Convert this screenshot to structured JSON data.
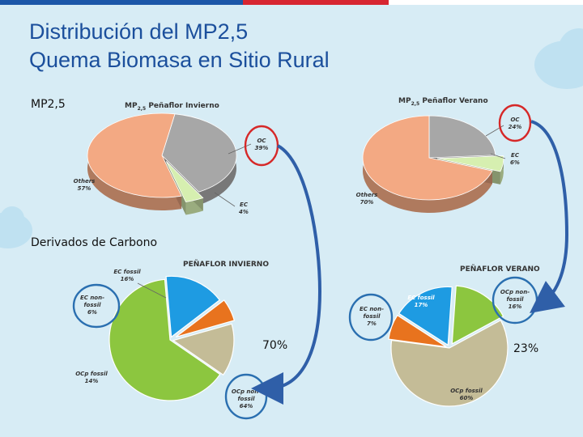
{
  "title": {
    "line1": "Distribución del MP2,5",
    "line2": "Quema Biomasa en Sitio Rural"
  },
  "section_labels": {
    "mp25": "MP2,5",
    "carbon": "Derivados de Carbono"
  },
  "colors": {
    "title": "#1b4f9c",
    "oc": "#a7a7a7",
    "ec": "#d6efb0",
    "others": "#f3a983",
    "ec_fossil": "#1e9be2",
    "ec_nonfossil": "#e8731e",
    "ocp_fossil": "#c4bc97",
    "ocp_nonfossil": "#8cc63f",
    "circle": "#d62828",
    "blue_circle": "#2a6fb0",
    "arrow": "#2f5fa8"
  },
  "chart_data": [
    {
      "type": "pie",
      "title": "MP2,5 Peñaflor Invierno",
      "title_main": "MP",
      "title_sub": "2,5",
      "title_rest": " Peñaflor  Invierno",
      "slices": [
        {
          "name": "OC",
          "value": 39,
          "label": "39%"
        },
        {
          "name": "EC",
          "value": 4,
          "label": "4%"
        },
        {
          "name": "Others",
          "value": 57,
          "label": "57%"
        }
      ]
    },
    {
      "type": "pie",
      "title": "MP2,5 Peñaflor Verano",
      "title_main": "MP",
      "title_sub": "2,5",
      "title_rest": " Peñaflor  Verano",
      "slices": [
        {
          "name": "OC",
          "value": 24,
          "label": "24%"
        },
        {
          "name": "EC",
          "value": 6,
          "label": "6%"
        },
        {
          "name": "Others",
          "value": 70,
          "label": "70%"
        }
      ]
    },
    {
      "type": "pie",
      "title": "PEÑAFLOR INVIERNO",
      "highlight": "70%",
      "slices": [
        {
          "name": "EC fossil",
          "value": 16,
          "label": "16%"
        },
        {
          "name": "EC non-fossil",
          "value": 6,
          "label": "6%"
        },
        {
          "name": "OCp fossil",
          "value": 14,
          "label": "14%"
        },
        {
          "name": "OCp non-fossil",
          "value": 64,
          "label": "64%"
        }
      ]
    },
    {
      "type": "pie",
      "title": "PEÑAFLOR VERANO",
      "highlight": "23%",
      "slices": [
        {
          "name": "OCp non-fossil",
          "value": 16,
          "label": "16%"
        },
        {
          "name": "OCp fossil",
          "value": 60,
          "label": "60%"
        },
        {
          "name": "EC non-fossil",
          "value": 7,
          "label": "7%"
        },
        {
          "name": "EC fossil",
          "value": 17,
          "label": "17%"
        }
      ]
    }
  ],
  "callouts": {
    "c1_oc": [
      "OC",
      "39%"
    ],
    "c1_ec": [
      "EC",
      "4%"
    ],
    "c1_others": [
      "Others",
      "57%"
    ],
    "c2_oc": [
      "OC",
      "24%"
    ],
    "c2_ec": [
      "EC",
      "6%"
    ],
    "c2_others": [
      "Others",
      "70%"
    ],
    "c3_ecf": [
      "EC fossil",
      "16%"
    ],
    "c3_ecnf": [
      "EC non-",
      "fossil",
      "6%"
    ],
    "c3_ocpf": [
      "OCp fossil",
      "14%"
    ],
    "c3_ocpnf": [
      "OCp non-",
      "fossil",
      "64%"
    ],
    "c4_ocpnf": [
      "OCp non-",
      "fossil",
      "16%"
    ],
    "c4_ocpf": [
      "OCp fossil",
      "60%"
    ],
    "c4_ecnf": [
      "EC non-",
      "fossil",
      "7%"
    ],
    "c4_ecf": [
      "EC fossil",
      "17%"
    ]
  }
}
